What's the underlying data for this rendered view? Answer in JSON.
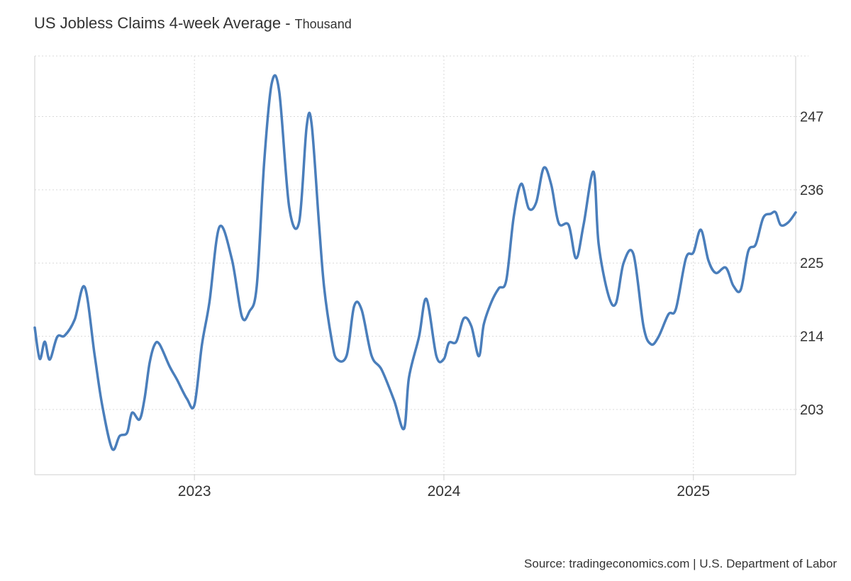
{
  "header": {
    "title": "US Jobless Claims 4-week Average",
    "separator": " - ",
    "unit": "Thousand"
  },
  "footer": {
    "source": "Source: tradingeconomics.com | U.S. Department of Labor"
  },
  "colors": {
    "line": "#4a7ebb",
    "grid": "#d9d9d9",
    "axis": "#cfcfcf",
    "text": "#333333"
  },
  "chart_data": {
    "type": "line",
    "title": "US Jobless Claims 4-week Average",
    "ylabel": "Thousand",
    "xlabel": "",
    "ylim": [
      193.2,
      256.1
    ],
    "xlim": [
      2022.36,
      2025.41
    ],
    "grid": true,
    "legend": "none",
    "yticks": [
      203,
      214,
      225,
      236,
      247
    ],
    "xticks": [
      {
        "value": 2023.0,
        "label": "2023"
      },
      {
        "value": 2024.0,
        "label": "2024"
      },
      {
        "value": 2025.0,
        "label": "2025"
      }
    ],
    "series": [
      {
        "x": [
          2022.36,
          2022.38,
          2022.4,
          2022.42,
          2022.45,
          2022.48,
          2022.52,
          2022.56,
          2022.6,
          2022.63,
          2022.67,
          2022.7,
          2022.73,
          2022.75,
          2022.78,
          2022.8,
          2022.82,
          2022.84,
          2022.86,
          2022.9,
          2022.93,
          2022.97,
          2023.0,
          2023.03,
          2023.06,
          2023.1,
          2023.15,
          2023.19,
          2023.22,
          2023.25,
          2023.28,
          2023.31,
          2023.34,
          2023.38,
          2023.42,
          2023.45,
          2023.47,
          2023.5,
          2023.52,
          2023.55,
          2023.57,
          2023.61,
          2023.64,
          2023.67,
          2023.71,
          2023.75,
          2023.8,
          2023.84,
          2023.86,
          2023.9,
          2023.93,
          2023.97,
          2024.0,
          2024.02,
          2024.05,
          2024.08,
          2024.11,
          2024.14,
          2024.16,
          2024.19,
          2024.22,
          2024.25,
          2024.28,
          2024.31,
          2024.34,
          2024.37,
          2024.4,
          2024.43,
          2024.46,
          2024.5,
          2024.53,
          2024.56,
          2024.6,
          2024.62,
          2024.66,
          2024.69,
          2024.72,
          2024.76,
          2024.8,
          2024.83,
          2024.86,
          2024.9,
          2024.93,
          2024.97,
          2025.0,
          2025.03,
          2025.06,
          2025.09,
          2025.13,
          2025.16,
          2025.19,
          2025.22,
          2025.25,
          2025.28,
          2025.31,
          2025.33,
          2025.35,
          2025.38,
          2025.41
        ],
        "values": [
          215.3,
          210.6,
          213.2,
          210.5,
          213.9,
          214.1,
          216.5,
          221.4,
          211.2,
          203.7,
          197.1,
          199.0,
          199.5,
          202.5,
          201.5,
          204.6,
          209.9,
          212.7,
          212.8,
          209.5,
          207.5,
          204.6,
          203.7,
          212.7,
          219.1,
          230.4,
          225.6,
          217.0,
          217.7,
          221.6,
          240.4,
          252.0,
          250.7,
          233.4,
          231.2,
          245.6,
          245.8,
          230.5,
          221.3,
          213.5,
          210.6,
          211.1,
          218.5,
          218.0,
          211.1,
          209.0,
          204.4,
          200.1,
          207.8,
          213.9,
          219.6,
          211.0,
          210.6,
          213.0,
          213.2,
          216.7,
          215.5,
          211.0,
          215.8,
          219.1,
          221.2,
          222.4,
          232.0,
          236.9,
          233.2,
          234.1,
          239.3,
          236.8,
          231.0,
          230.7,
          225.7,
          230.8,
          238.7,
          227.9,
          220.1,
          219.0,
          225.0,
          226.3,
          215.5,
          212.8,
          213.9,
          217.3,
          218.1,
          225.7,
          226.6,
          230.0,
          225.4,
          223.5,
          224.3,
          221.6,
          221.0,
          226.8,
          227.8,
          231.8,
          232.4,
          232.6,
          230.7,
          231.1,
          232.6
        ]
      }
    ]
  }
}
